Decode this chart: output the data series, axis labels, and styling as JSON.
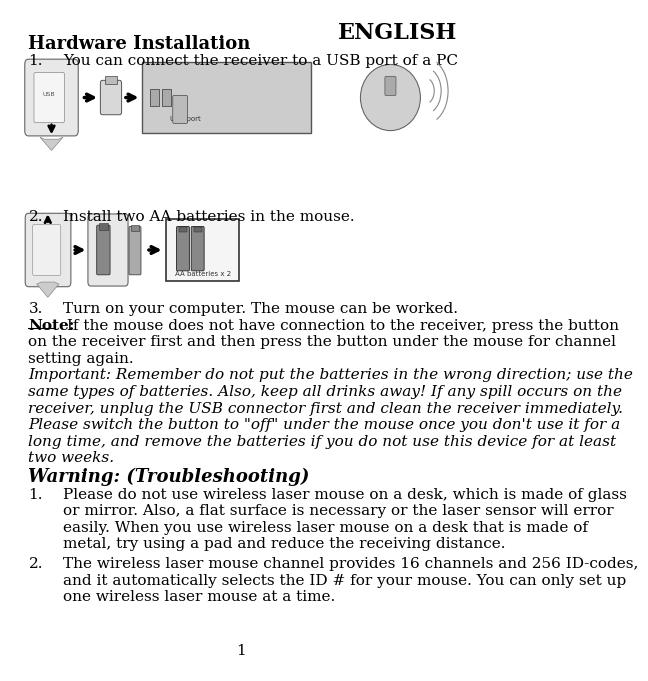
{
  "bg_color": "#ffffff",
  "text_color": "#000000",
  "fontfam": "DejaVu Serif",
  "english_header": "ENGLISH",
  "section_title": "Hardware Installation",
  "item1": "You can connect the receiver to a USB port of a PC",
  "item2": "Install two AA batteries in the mouse.",
  "item3": "Turn on your computer. The mouse can be worked.",
  "note_label": "Note:",
  "note_rest": " If the mouse does not have connection to the receiver, press the button",
  "note_line2": "on the receiver first and then press the button under the mouse for channel",
  "note_line3": "setting again.",
  "important_lines": [
    "Important: Remember do not put the batteries in the wrong direction; use the",
    "same types of batteries. Also, keep all drinks away! If any spill occurs on the",
    "receiver, unplug the USB connector first and clean the receiver immediately.",
    "Please switch the button to \"off\" under the mouse once you don't use it for a",
    "long time, and remove the batteries if you do not use this device for at least",
    "two weeks."
  ],
  "warning_head": "Warning: (Troubleshooting)",
  "ts1_num": "1.",
  "ts1_lines": [
    "Please do not use wireless laser mouse on a desk, which is made of glass",
    "or mirror. Also, a flat surface is necessary or the laser sensor will error",
    "easily. When you use wireless laser mouse on a desk that is made of",
    "metal, try using a pad and reduce the receiving distance."
  ],
  "ts2_num": "2.",
  "ts2_lines": [
    "The wireless laser mouse channel provides 16 channels and 256 ID-codes,",
    "and it automatically selects the ID # for your mouse. You can only set up",
    "one wireless laser mouse at a time."
  ],
  "page_num": "1"
}
